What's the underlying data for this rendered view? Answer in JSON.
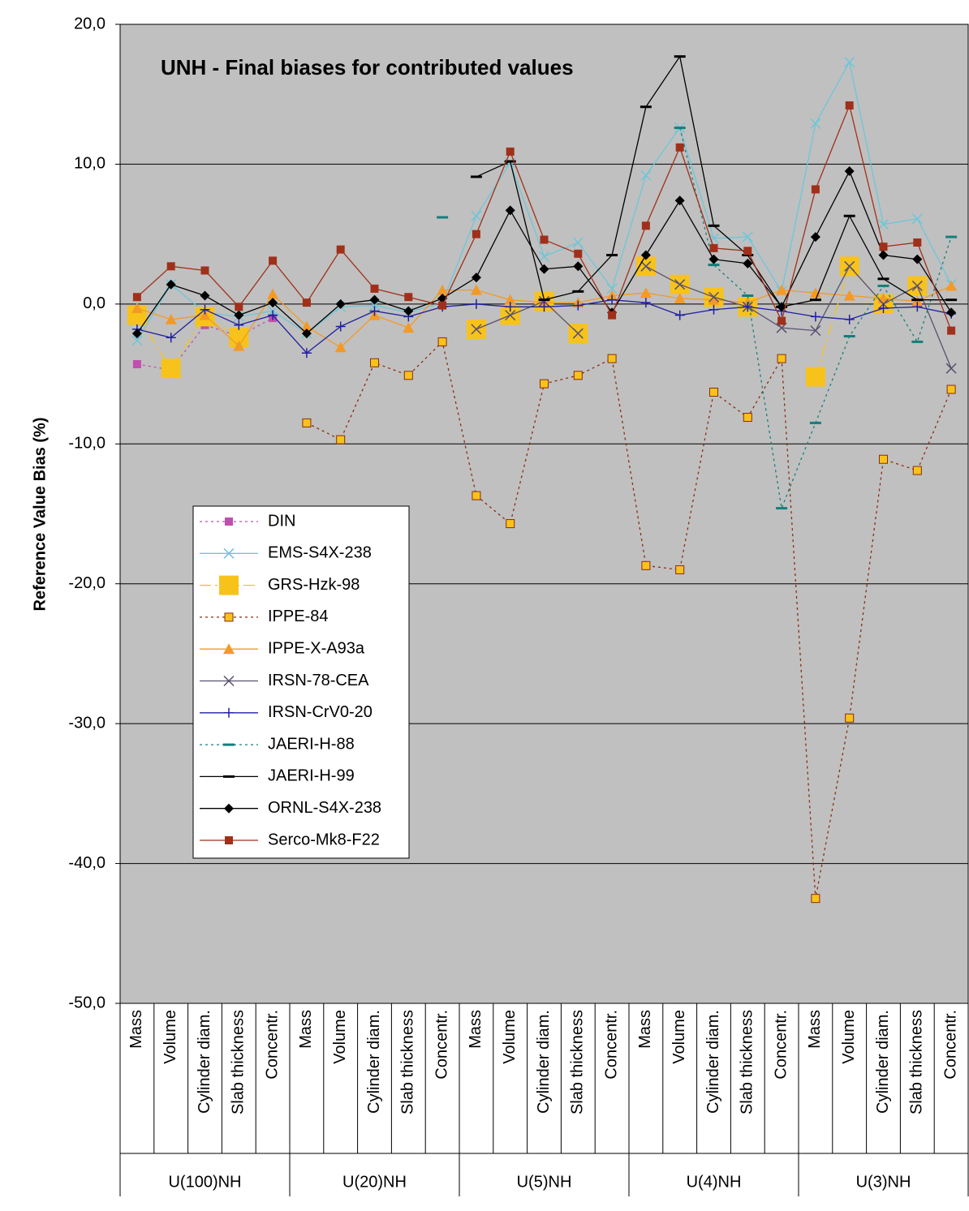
{
  "chart_data": {
    "type": "line",
    "title": "UNH - Final biases for contributed values",
    "y_label": "Reference Value Bias (%)",
    "categories": [
      "Mass",
      "Volume",
      "Cylinder diam.",
      "Slab thickness",
      "Concentr.",
      "Mass",
      "Volume",
      "Cylinder diam.",
      "Slab thickness",
      "Concentr.",
      "Mass",
      "Volume",
      "Cylinder diam.",
      "Slab thickness",
      "Concentr.",
      "Mass",
      "Volume",
      "Cylinder diam.",
      "Slab thickness",
      "Concentr.",
      "Mass",
      "Volume",
      "Cylinder diam.",
      "Slab thickness",
      "Concentr."
    ],
    "groups": [
      "U(100)NH",
      "U(20)NH",
      "U(5)NH",
      "U(4)NH",
      "U(3)NH"
    ],
    "ylim": [
      -50,
      20
    ],
    "yticks": [
      {
        "value": -50,
        "label": "-50,0"
      },
      {
        "value": -40,
        "label": "-40,0"
      },
      {
        "value": -30,
        "label": "-30,0"
      },
      {
        "value": -20,
        "label": "-20,0"
      },
      {
        "value": -10,
        "label": "-10,0"
      },
      {
        "value": 0,
        "label": "0,0"
      },
      {
        "value": 10,
        "label": "10,0"
      },
      {
        "value": 20,
        "label": "20,0"
      }
    ],
    "grid": true,
    "series": [
      {
        "name": "DIN",
        "color": "#c04fb0",
        "line_style": "dotted",
        "marker": "square",
        "values": [
          -4.3,
          -4.7,
          -1.5,
          -2.3,
          -1.0,
          null,
          null,
          null,
          null,
          null,
          null,
          null,
          null,
          null,
          null,
          null,
          null,
          null,
          null,
          null,
          null,
          null,
          null,
          null,
          null
        ]
      },
      {
        "name": "EMS-S4X-238",
        "color": "#6ec6d8",
        "line_style": "solid",
        "marker": "x",
        "values": [
          -2.6,
          1.4,
          -0.6,
          -0.9,
          -0.5,
          -2.1,
          -0.2,
          -0.1,
          -0.6,
          0.1,
          6.3,
          10.1,
          3.4,
          4.4,
          1.1,
          9.2,
          12.6,
          4.7,
          4.8,
          0.9,
          12.9,
          17.3,
          5.7,
          6.1,
          1.4
        ]
      },
      {
        "name": "GRS-Hzk-98",
        "color": "#f7c31a",
        "line_style": "dashdot",
        "marker": "big-square",
        "values": [
          -0.8,
          -4.6,
          -0.9,
          -2.4,
          null,
          null,
          null,
          null,
          null,
          null,
          -1.8,
          -0.8,
          0.2,
          -2.1,
          null,
          2.7,
          1.4,
          0.5,
          -0.2,
          null,
          -5.2,
          2.7,
          0.0,
          1.3,
          null
        ]
      },
      {
        "name": "IPPE-84",
        "color": "#8b2a10",
        "marker_fill": "#f7c31a",
        "line_style": "dotted",
        "marker": "small-square",
        "values": [
          null,
          null,
          null,
          null,
          null,
          -8.5,
          -9.7,
          -4.2,
          -5.1,
          -2.7,
          -13.7,
          -15.7,
          -5.7,
          -5.1,
          -3.9,
          -18.7,
          -19.0,
          -6.3,
          -8.1,
          -3.9,
          -42.5,
          -29.6,
          -11.1,
          -11.9,
          -6.1
        ]
      },
      {
        "name": "IPPE-X-A93a",
        "color": "#f39a26",
        "line_style": "solid",
        "marker": "triangle",
        "values": [
          -0.3,
          -1.1,
          -0.8,
          -3.0,
          0.7,
          -1.6,
          -3.1,
          -0.8,
          -1.7,
          1.0,
          1.0,
          0.3,
          0.1,
          0.1,
          0.6,
          0.8,
          0.4,
          0.3,
          0.1,
          1.0,
          0.8,
          0.6,
          0.4,
          0.2,
          1.3
        ]
      },
      {
        "name": "IRSN-78-CEA",
        "color": "#5a5070",
        "line_style": "solid",
        "marker": "x",
        "values": [
          null,
          null,
          null,
          null,
          null,
          null,
          null,
          null,
          null,
          null,
          -1.8,
          -0.8,
          0.2,
          -2.1,
          null,
          2.7,
          1.4,
          0.5,
          -0.2,
          -1.7,
          -1.9,
          2.7,
          0.0,
          1.3,
          -4.6
        ]
      },
      {
        "name": "IRSN-CrV0-20",
        "color": "#2020a0",
        "line_style": "solid",
        "marker": "plus",
        "values": [
          -1.8,
          -2.4,
          -0.4,
          -1.5,
          -0.8,
          -3.5,
          -1.6,
          -0.5,
          -0.9,
          -0.2,
          0.0,
          -0.2,
          -0.2,
          -0.1,
          0.3,
          0.1,
          -0.8,
          -0.4,
          -0.2,
          -0.5,
          -0.9,
          -1.1,
          -0.3,
          -0.2,
          -0.7
        ]
      },
      {
        "name": "JAERI-H-88",
        "color": "#157e7a",
        "line_style": "dotted",
        "marker": "dash",
        "values": [
          null,
          null,
          null,
          null,
          null,
          null,
          null,
          null,
          null,
          6.2,
          null,
          null,
          null,
          null,
          null,
          null,
          12.6,
          2.8,
          0.6,
          -14.6,
          -8.5,
          -2.3,
          1.3,
          -2.7,
          4.8
        ]
      },
      {
        "name": "JAERI-H-99",
        "color": "#000000",
        "line_style": "solid",
        "marker": "dash",
        "values": [
          null,
          null,
          null,
          null,
          null,
          null,
          null,
          null,
          null,
          null,
          9.1,
          10.2,
          0.3,
          0.9,
          3.5,
          14.1,
          17.7,
          5.6,
          3.5,
          -0.2,
          0.3,
          6.3,
          1.8,
          0.3,
          0.3
        ]
      },
      {
        "name": "ORNL-S4X-238",
        "color": "#000000",
        "line_style": "solid",
        "marker": "diamond",
        "values": [
          -2.1,
          1.4,
          0.6,
          -0.8,
          0.1,
          -2.1,
          0.0,
          0.3,
          -0.5,
          0.4,
          1.9,
          6.7,
          2.5,
          2.7,
          -0.6,
          3.5,
          7.4,
          3.2,
          2.9,
          -0.2,
          4.8,
          9.5,
          3.5,
          3.2,
          -0.6
        ]
      },
      {
        "name": "Serco-Mk8-F22",
        "color": "#a0301a",
        "line_style": "solid",
        "marker": "square",
        "values": [
          0.5,
          2.7,
          2.4,
          -0.2,
          3.1,
          0.1,
          3.9,
          1.1,
          0.5,
          -0.1,
          5.0,
          10.9,
          4.6,
          3.6,
          -0.8,
          5.6,
          11.2,
          4.0,
          3.8,
          -1.2,
          8.2,
          14.2,
          4.1,
          4.4,
          -1.9
        ]
      }
    ]
  }
}
